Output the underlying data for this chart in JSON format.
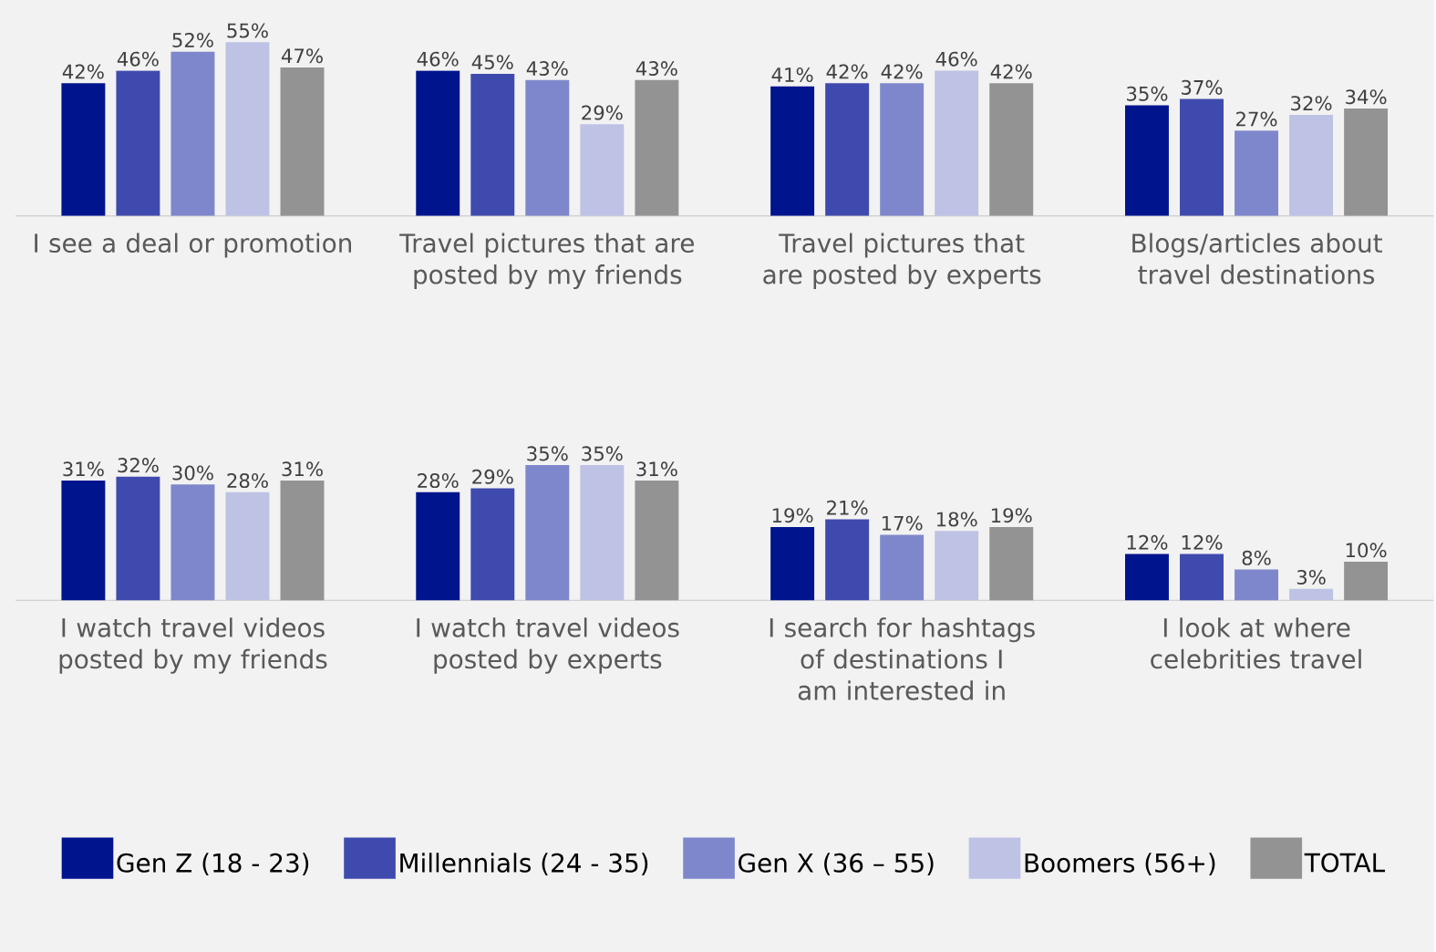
{
  "chart_data": [
    {
      "type": "bar",
      "categories": [
        "I see a deal or promotion",
        "Travel pictures that are posted by my friends",
        "Travel pictures that are posted by experts",
        "Blogs/articles about travel destinations"
      ],
      "tick_labels": "x",
      "legend": false,
      "series": [
        {
          "color": "#00148e",
          "values": [
            42,
            46,
            41,
            35
          ],
          "value_labels": [
            "42%",
            "46%",
            "41%",
            "35%"
          ]
        },
        {
          "color": "#3f4aae",
          "values": [
            46,
            45,
            42,
            37
          ],
          "value_labels": [
            "46%",
            "45%",
            "42%",
            "37%"
          ]
        },
        {
          "color": "#7f87cc",
          "values": [
            52,
            43,
            42,
            27
          ],
          "value_labels": [
            "52%",
            "43%",
            "42%",
            "27%"
          ]
        },
        {
          "color": "#bec2e4",
          "values": [
            55,
            29,
            46,
            32
          ],
          "value_labels": [
            "55%",
            "29%",
            "46%",
            "32%"
          ]
        },
        {
          "color": "#939393",
          "values": [
            47,
            43,
            42,
            34
          ],
          "value_labels": [
            "47%",
            "43%",
            "42%",
            "34%"
          ]
        }
      ]
    },
    {
      "type": "bar",
      "categories": [
        "I watch travel videos posted by my friends",
        "I watch travel videos posted by experts",
        "I search for hashtags of destinations I am interested in",
        "I look at where celebrities travel"
      ],
      "tick_labels": "x",
      "legend": "bottom",
      "series": [
        {
          "name": "Gen Z (18 - 23)",
          "color": "#00148e",
          "values": [
            31,
            28,
            19,
            12
          ],
          "value_labels": [
            "31%",
            "28%",
            "19%",
            "12%"
          ]
        },
        {
          "name": "Millennials (24 - 35)",
          "color": "#3f4aae",
          "values": [
            32,
            29,
            21,
            12
          ],
          "value_labels": [
            "32%",
            "29%",
            "21%",
            "12%"
          ]
        },
        {
          "name": "Gen X (36 – 55)",
          "color": "#7f87cc",
          "values": [
            30,
            35,
            17,
            8
          ],
          "value_labels": [
            "30%",
            "35%",
            "17%",
            "8%"
          ]
        },
        {
          "name": "Boomers (56+)",
          "color": "#bec2e4",
          "values": [
            28,
            35,
            18,
            3
          ],
          "value_labels": [
            "28%",
            "35%",
            "18%",
            "3%"
          ]
        },
        {
          "name": "TOTAL",
          "color": "#939393",
          "values": [
            31,
            31,
            19,
            10
          ],
          "value_labels": [
            "31%",
            "31%",
            "19%",
            "10%"
          ]
        }
      ]
    }
  ]
}
